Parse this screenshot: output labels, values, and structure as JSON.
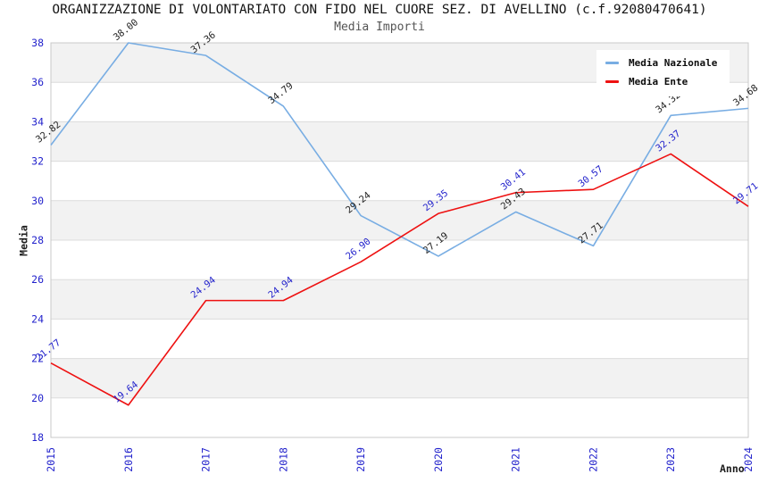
{
  "chart_data": {
    "type": "line",
    "title": "ORGANIZZAZIONE DI VOLONTARIATO CON FIDO NEL CUORE SEZ. DI AVELLINO (c.f.92080470641)",
    "subtitle": "Media Importi",
    "xlabel": "Anno",
    "ylabel": "Media",
    "ylim": [
      18,
      38
    ],
    "ytick_step": 2,
    "grid": "horizontal-bands",
    "legend_position": "top-right",
    "tick_color": "#2323cc",
    "band_color": "#f2f2f2",
    "grid_color": "#dcdcdc",
    "border_color": "#c9c9c9",
    "categories": [
      "2015",
      "2016",
      "2017",
      "2018",
      "2019",
      "2020",
      "2021",
      "2022",
      "2023",
      "2024"
    ],
    "series": [
      {
        "name": "Media Nazionale",
        "color": "#78ade3",
        "label_color": "#222222",
        "values": [
          32.82,
          38.0,
          37.36,
          34.79,
          29.24,
          27.19,
          29.43,
          27.71,
          34.32,
          34.68
        ]
      },
      {
        "name": "Media Ente",
        "color": "#ee1111",
        "label_color": "#2323cc",
        "values": [
          21.77,
          19.64,
          24.94,
          24.94,
          26.9,
          29.35,
          30.41,
          30.57,
          32.37,
          29.71
        ]
      }
    ]
  }
}
